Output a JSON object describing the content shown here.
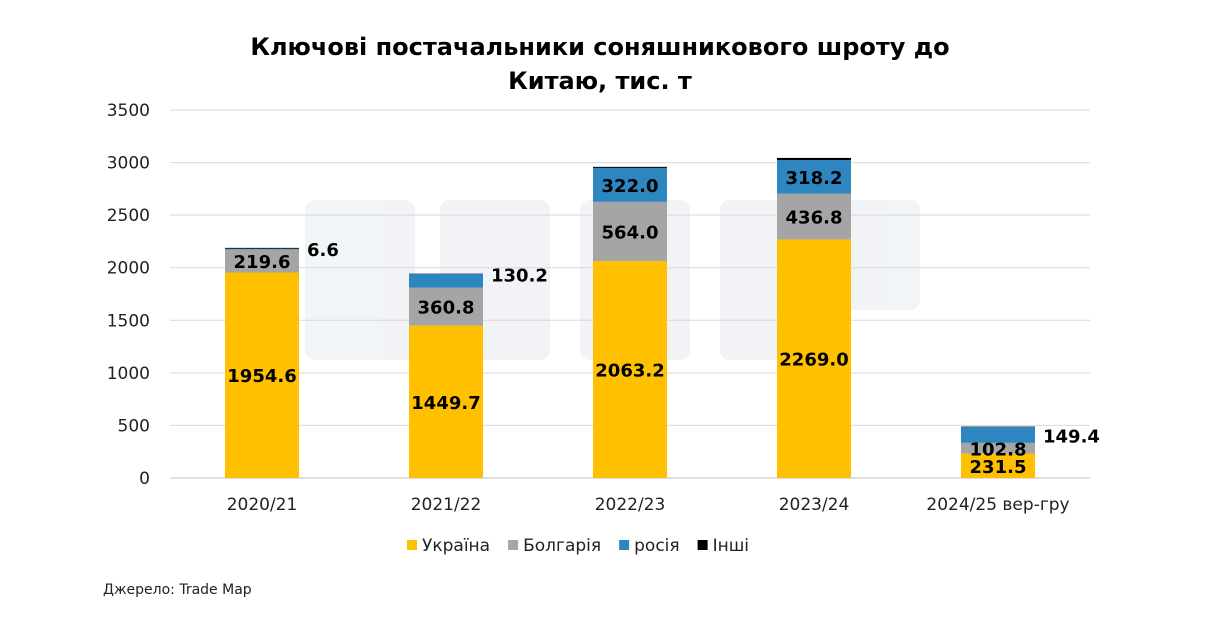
{
  "chart_data": {
    "type": "bar",
    "stacked": true,
    "title": "Ключові постачальники соняшникового шроту до Китаю, тис. т",
    "title_lines": [
      "Ключові постачальники соняшникового шроту до",
      "Китаю, тис. т"
    ],
    "xlabel": "",
    "ylabel": "",
    "ylim": [
      0,
      3500
    ],
    "yticks": [
      0,
      500,
      1000,
      1500,
      2000,
      2500,
      3000,
      3500
    ],
    "grid": true,
    "legend_position": "bottom",
    "categories": [
      "2020/21",
      "2021/22",
      "2022/23",
      "2023/24",
      "2024/25 вер-гру"
    ],
    "series": [
      {
        "name": "Україна",
        "color": "#FFC000",
        "values": [
          1954.6,
          1449.7,
          2063.2,
          2269.0,
          231.5
        ]
      },
      {
        "name": "Болгарія",
        "color": "#A5A5A5",
        "values": [
          219.6,
          360.8,
          564.0,
          436.8,
          102.8
        ]
      },
      {
        "name": "росія",
        "color": "#2E86C1",
        "values": [
          6.6,
          130.2,
          322.0,
          318.2,
          149.4
        ]
      },
      {
        "name": "Інші",
        "color": "#000000",
        "values": [
          8,
          3,
          10,
          20,
          5
        ]
      }
    ],
    "data_labels": [
      [
        {
          "series": 0,
          "text": "1954.6"
        },
        {
          "series": 1,
          "text": "219.6"
        },
        {
          "series": 2,
          "text": "6.6",
          "outside": true
        }
      ],
      [
        {
          "series": 0,
          "text": "1449.7"
        },
        {
          "series": 1,
          "text": "360.8"
        },
        {
          "series": 2,
          "text": "130.2",
          "outside": true
        }
      ],
      [
        {
          "series": 0,
          "text": "2063.2"
        },
        {
          "series": 1,
          "text": "564.0"
        },
        {
          "series": 2,
          "text": "322.0"
        }
      ],
      [
        {
          "series": 0,
          "text": "2269.0"
        },
        {
          "series": 1,
          "text": "436.8"
        },
        {
          "series": 2,
          "text": "318.2"
        }
      ],
      [
        {
          "series": 0,
          "text": "231.5"
        },
        {
          "series": 1,
          "text": "102.8"
        },
        {
          "series": 2,
          "text": "149.4",
          "outside": true
        }
      ]
    ]
  },
  "source": "Джерело: Trade Map"
}
